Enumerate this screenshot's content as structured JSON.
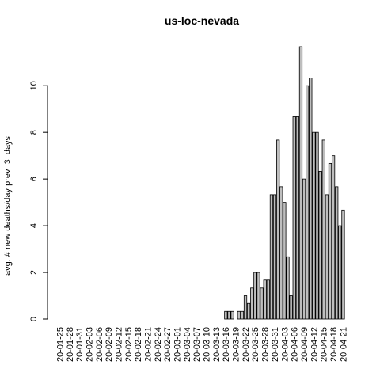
{
  "chart_data": {
    "type": "bar",
    "title": "us-loc-nevada",
    "y_label": "avg. # new deaths/day prev  3  days",
    "categories": [
      "20-01-25",
      null,
      null,
      "20-01-28",
      null,
      null,
      "20-01-31",
      null,
      null,
      "20-02-03",
      null,
      null,
      "20-02-06",
      null,
      null,
      "20-02-09",
      null,
      null,
      "20-02-12",
      null,
      null,
      "20-02-15",
      null,
      null,
      "20-02-18",
      null,
      null,
      "20-02-21",
      null,
      null,
      "20-02-24",
      null,
      null,
      "20-02-27",
      null,
      null,
      "20-03-01",
      null,
      null,
      "20-03-04",
      null,
      null,
      "20-03-07",
      null,
      null,
      "20-03-10",
      null,
      null,
      "20-03-13",
      null,
      null,
      "20-03-16",
      null,
      null,
      "20-03-19",
      null,
      null,
      "20-03-22",
      null,
      null,
      "20-03-25",
      null,
      null,
      "20-03-28",
      null,
      null,
      "20-03-31",
      null,
      null,
      "20-04-03",
      null,
      null,
      "20-04-06",
      null,
      null,
      "20-04-09",
      null,
      null,
      "20-04-12",
      null,
      null,
      "20-04-15",
      null,
      null,
      "20-04-18",
      null,
      null,
      "20-04-21"
    ],
    "values": [
      0,
      0,
      0,
      0,
      0,
      0,
      0,
      0,
      0,
      0,
      0,
      0,
      0,
      0,
      0,
      0,
      0,
      0,
      0,
      0,
      0,
      0,
      0,
      0,
      0,
      0,
      0,
      0,
      0,
      0,
      0,
      0,
      0,
      0,
      0,
      0,
      0,
      0,
      0,
      0,
      0,
      0,
      0,
      0,
      0,
      0,
      0,
      0,
      0,
      0,
      0,
      0.33,
      0.33,
      0.33,
      0,
      0.33,
      0.33,
      1.0,
      0.67,
      1.33,
      2,
      2,
      1.33,
      1.67,
      1.67,
      5.33,
      5.33,
      7.67,
      5.67,
      5.0,
      2.67,
      1.0,
      8.67,
      8.67,
      11.67,
      6.0,
      10.0,
      10.33,
      8.0,
      8.0,
      6.33,
      7.67,
      5.33,
      6.67,
      7.0,
      5.67,
      4.0,
      4.67
    ],
    "color": "#bebebe",
    "ylim": [
      0,
      11.67
    ],
    "yticks": [
      0,
      2,
      4,
      6,
      8,
      10
    ]
  }
}
